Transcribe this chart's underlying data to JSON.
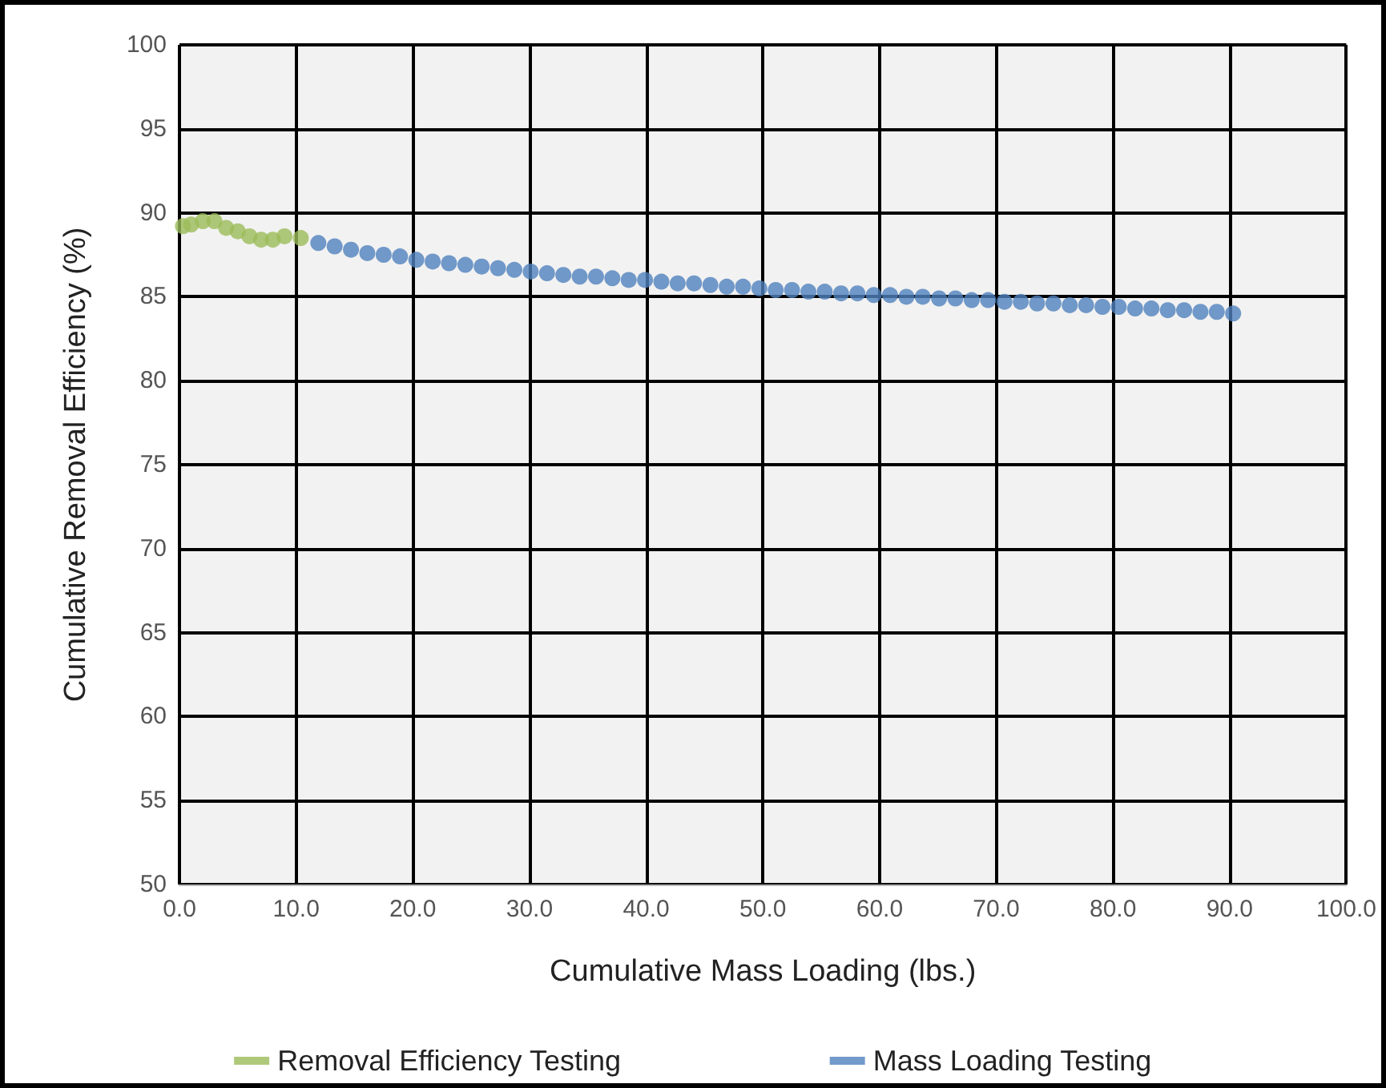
{
  "chart_data": {
    "type": "scatter",
    "xlabel": "Cumulative Mass Loading (lbs.)",
    "ylabel": "Cumulative Removal Efficiency (%)",
    "xlim": [
      0,
      100
    ],
    "xticks": [
      {
        "value": 0,
        "label": "0.0"
      },
      {
        "value": 10,
        "label": "10.0"
      },
      {
        "value": 20,
        "label": "20.0"
      },
      {
        "value": 30,
        "label": "30.0"
      },
      {
        "value": 40,
        "label": "40.0"
      },
      {
        "value": 50,
        "label": "50.0"
      },
      {
        "value": 60,
        "label": "60.0"
      },
      {
        "value": 70,
        "label": "70.0"
      },
      {
        "value": 80,
        "label": "80.0"
      },
      {
        "value": 90,
        "label": "90.0"
      },
      {
        "value": 100,
        "label": "100.0"
      }
    ],
    "ylim": [
      50,
      100
    ],
    "yticks": [
      50,
      55,
      60,
      65,
      70,
      75,
      80,
      85,
      90,
      95,
      100
    ],
    "grid": true,
    "legend": "bottom",
    "marker": "circle",
    "series": [
      {
        "name": "Removal Efficiency Testing",
        "color": "#9bbb59",
        "x": [
          0.3,
          1,
          2,
          3,
          4,
          5,
          6,
          7,
          8,
          9,
          10.4
        ],
        "values": [
          89.2,
          89.3,
          89.5,
          89.5,
          89.1,
          88.9,
          88.6,
          88.4,
          88.4,
          88.6,
          88.5
        ]
      },
      {
        "name": "Mass Loading Testing",
        "color": "#4f81bd",
        "x": [
          11.9,
          13.3,
          14.7,
          16.1,
          17.5,
          18.9,
          20.3,
          21.7,
          23.1,
          24.5,
          25.9,
          27.3,
          28.7,
          30.1,
          31.5,
          32.9,
          34.3,
          35.7,
          37.1,
          38.5,
          39.9,
          41.3,
          42.7,
          44.1,
          45.5,
          46.9,
          48.3,
          49.7,
          51.1,
          52.5,
          53.9,
          55.3,
          56.7,
          58.1,
          59.5,
          60.9,
          62.3,
          63.7,
          65.1,
          66.5,
          67.9,
          69.3,
          70.7,
          72.1,
          73.5,
          74.9,
          76.3,
          77.7,
          79.1,
          80.5,
          81.9,
          83.3,
          84.7,
          86.1,
          87.5,
          88.9,
          90.3
        ],
        "values": [
          88.2,
          88.0,
          87.8,
          87.6,
          87.5,
          87.4,
          87.2,
          87.1,
          87.0,
          86.9,
          86.8,
          86.7,
          86.6,
          86.5,
          86.4,
          86.3,
          86.2,
          86.2,
          86.1,
          86.0,
          86.0,
          85.9,
          85.8,
          85.8,
          85.7,
          85.6,
          85.6,
          85.5,
          85.4,
          85.4,
          85.3,
          85.3,
          85.2,
          85.2,
          85.1,
          85.1,
          85.0,
          85.0,
          84.9,
          84.9,
          84.8,
          84.8,
          84.7,
          84.7,
          84.6,
          84.6,
          84.5,
          84.5,
          84.4,
          84.4,
          84.3,
          84.3,
          84.2,
          84.2,
          84.1,
          84.1,
          84.0
        ]
      }
    ]
  }
}
